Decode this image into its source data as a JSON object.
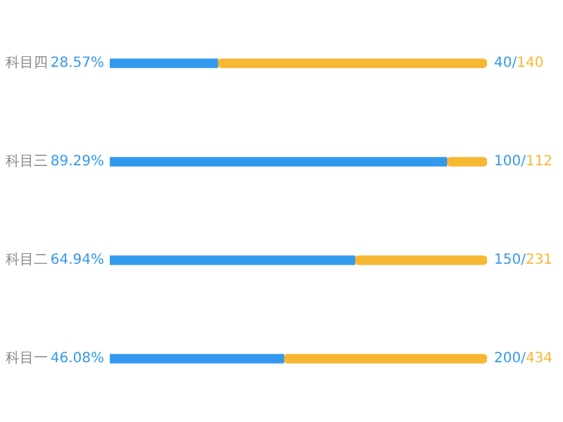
{
  "chart_data": {
    "type": "bar",
    "orientation": "horizontal",
    "stacked": true,
    "categories": [
      "科目四",
      "科目三",
      "科目二",
      "科目一"
    ],
    "xlim": [
      0,
      100
    ],
    "tick_labels": "y",
    "grid": false,
    "legend": false,
    "series": [
      {
        "color": "#3399ee",
        "values": [
          28.57,
          89.29,
          64.94,
          46.08
        ],
        "value_labels": [
          "28.57%",
          "89.29%",
          "64.94%",
          "46.08%"
        ]
      },
      {
        "color": "#f7b733",
        "values": [
          71.43,
          10.71,
          35.06,
          53.92
        ],
        "value_labels": [
          "40/140",
          "100/112",
          "150/231",
          "200/434"
        ]
      }
    ]
  }
}
